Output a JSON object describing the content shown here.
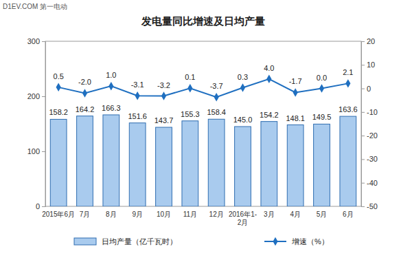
{
  "chart_data": {
    "type": "bar",
    "title": "发电量同比增速及日均产量",
    "annotations": [
      "D1EV.COM 第一电动"
    ],
    "categories": [
      "2015年6月",
      "7月",
      "8月",
      "9月",
      "10月",
      "11月",
      "12月",
      "2016年1-2月",
      "3月",
      "4月",
      "5月",
      "6月"
    ],
    "series": [
      {
        "name": "日均产量（亿千瓦时）",
        "type": "bar",
        "color": "#a9cbee",
        "values": [
          158.2,
          164.2,
          166.3,
          151.6,
          143.7,
          155.3,
          158.4,
          145.0,
          154.2,
          148.1,
          149.5,
          163.6
        ],
        "value_labels": [
          "158.2",
          "164.2",
          "166.3",
          "151.6",
          "143.7",
          "155.3",
          "158.4",
          "145.0",
          "154.2",
          "148.1",
          "149.5",
          "163.6"
        ]
      },
      {
        "name": "增速（%）",
        "type": "line",
        "axis": "y2",
        "color": "#1f6fc0",
        "marker": "diamond",
        "values": [
          0.5,
          -2.0,
          1.0,
          -3.1,
          -3.2,
          0.1,
          -3.7,
          0.3,
          4.0,
          -1.7,
          0.0,
          2.1
        ],
        "value_labels": [
          "0.5",
          "-2.0",
          "1.0",
          "-3.1",
          "-3.2",
          "0.1",
          "-3.7",
          "0.3",
          "4.0",
          "-1.7",
          "0.0",
          "2.1"
        ]
      }
    ],
    "ylim": [
      0,
      300
    ],
    "yticks": [
      0,
      100,
      200,
      300
    ],
    "y2lim": [
      -50,
      20
    ],
    "y2ticks": [
      -50,
      -40,
      -30,
      -20,
      -10,
      0,
      10,
      20
    ],
    "grid": false,
    "legend": "bottom",
    "data_labels": true
  }
}
